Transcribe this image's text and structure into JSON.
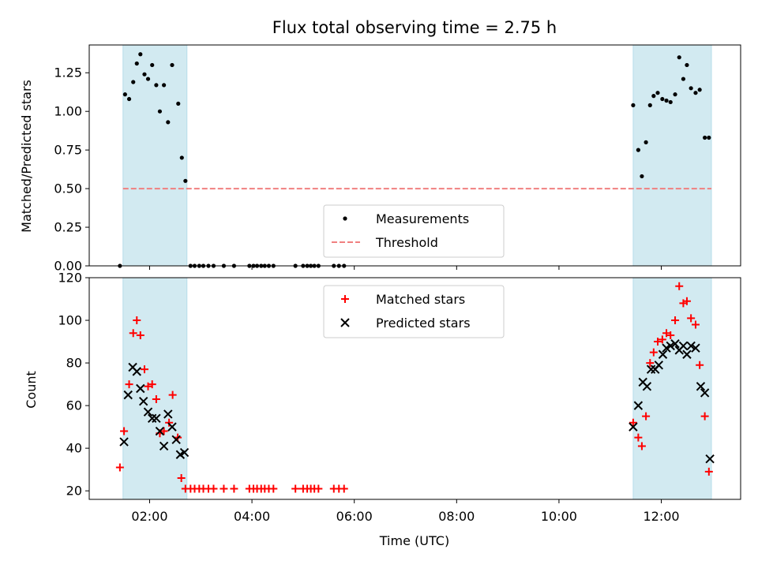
{
  "chart_data": [
    {
      "type": "scatter",
      "title": "Flux total observing time = 2.75 h",
      "xlabel": "",
      "ylabel": "Matched/Predicted stars",
      "xlim": [
        0.82,
        13.55
      ],
      "ylim": [
        0,
        1.43
      ],
      "yticks": [
        0.0,
        0.25,
        0.5,
        0.75,
        1.0,
        1.25
      ],
      "ytick_labels": [
        "0.00",
        "0.25",
        "0.50",
        "0.75",
        "1.00",
        "1.25"
      ],
      "xticks": [
        2,
        4,
        6,
        8,
        10,
        12
      ],
      "shaded_intervals": [
        [
          1.48,
          2.73
        ],
        [
          11.45,
          12.98
        ]
      ],
      "threshold": 0.5,
      "threshold_color": "#f08080",
      "shade_color": "#add8e6",
      "legend_position": "lower center",
      "legend": [
        "Measurements",
        "Threshold"
      ],
      "series": [
        {
          "name": "Measurements",
          "color": "#000000",
          "marker": "dot",
          "points": [
            [
              1.42,
              0.0
            ],
            [
              1.52,
              1.11
            ],
            [
              1.6,
              1.08
            ],
            [
              1.68,
              1.19
            ],
            [
              1.75,
              1.31
            ],
            [
              1.82,
              1.37
            ],
            [
              1.9,
              1.24
            ],
            [
              1.97,
              1.21
            ],
            [
              2.05,
              1.3
            ],
            [
              2.13,
              1.17
            ],
            [
              2.2,
              1.0
            ],
            [
              2.28,
              1.17
            ],
            [
              2.36,
              0.93
            ],
            [
              2.44,
              1.3
            ],
            [
              2.56,
              1.05
            ],
            [
              2.63,
              0.7
            ],
            [
              2.7,
              0.55
            ],
            [
              2.8,
              0.0
            ],
            [
              2.88,
              0.0
            ],
            [
              2.97,
              0.0
            ],
            [
              3.05,
              0.0
            ],
            [
              3.15,
              0.0
            ],
            [
              3.25,
              0.0
            ],
            [
              3.45,
              0.0
            ],
            [
              3.65,
              0.0
            ],
            [
              3.95,
              0.0
            ],
            [
              4.03,
              0.0
            ],
            [
              4.1,
              0.0
            ],
            [
              4.18,
              0.0
            ],
            [
              4.25,
              0.0
            ],
            [
              4.33,
              0.0
            ],
            [
              4.42,
              0.0
            ],
            [
              4.85,
              0.0
            ],
            [
              5.0,
              0.0
            ],
            [
              5.08,
              0.0
            ],
            [
              5.15,
              0.0
            ],
            [
              5.22,
              0.0
            ],
            [
              5.3,
              0.0
            ],
            [
              5.6,
              0.0
            ],
            [
              5.7,
              0.0
            ],
            [
              5.8,
              0.0
            ],
            [
              11.45,
              1.04
            ],
            [
              11.55,
              0.75
            ],
            [
              11.62,
              0.58
            ],
            [
              11.7,
              0.8
            ],
            [
              11.78,
              1.04
            ],
            [
              11.85,
              1.1
            ],
            [
              11.93,
              1.12
            ],
            [
              12.02,
              1.08
            ],
            [
              12.1,
              1.07
            ],
            [
              12.18,
              1.06
            ],
            [
              12.27,
              1.11
            ],
            [
              12.35,
              1.35
            ],
            [
              12.43,
              1.21
            ],
            [
              12.5,
              1.3
            ],
            [
              12.58,
              1.15
            ],
            [
              12.67,
              1.12
            ],
            [
              12.75,
              1.14
            ],
            [
              12.85,
              0.83
            ],
            [
              12.93,
              0.83
            ]
          ]
        }
      ]
    },
    {
      "type": "scatter",
      "title": "",
      "xlabel": "Time (UTC)",
      "ylabel": "Count",
      "xlim": [
        0.82,
        13.55
      ],
      "ylim": [
        16,
        120
      ],
      "yticks": [
        20,
        40,
        60,
        80,
        100,
        120
      ],
      "ytick_labels": [
        "20",
        "40",
        "60",
        "80",
        "100",
        "120"
      ],
      "xticks": [
        2,
        4,
        6,
        8,
        10,
        12
      ],
      "xtick_labels": [
        "02:00",
        "04:00",
        "06:00",
        "08:00",
        "10:00",
        "12:00"
      ],
      "shaded_intervals": [
        [
          1.48,
          2.73
        ],
        [
          11.45,
          12.98
        ]
      ],
      "shade_color": "#add8e6",
      "legend_position": "upper center",
      "legend": [
        "Matched stars",
        "Predicted stars"
      ],
      "series": [
        {
          "name": "Matched stars",
          "color": "#ff0000",
          "marker": "plus",
          "points": [
            [
              1.42,
              31
            ],
            [
              1.5,
              48
            ],
            [
              1.6,
              70
            ],
            [
              1.68,
              94
            ],
            [
              1.75,
              100
            ],
            [
              1.82,
              93
            ],
            [
              1.9,
              77
            ],
            [
              1.97,
              69
            ],
            [
              2.05,
              70
            ],
            [
              2.13,
              63
            ],
            [
              2.2,
              47
            ],
            [
              2.28,
              48
            ],
            [
              2.38,
              52
            ],
            [
              2.45,
              65
            ],
            [
              2.55,
              45
            ],
            [
              2.62,
              26
            ],
            [
              2.7,
              21
            ],
            [
              2.8,
              21
            ],
            [
              2.88,
              21
            ],
            [
              2.97,
              21
            ],
            [
              3.05,
              21
            ],
            [
              3.15,
              21
            ],
            [
              3.25,
              21
            ],
            [
              3.45,
              21
            ],
            [
              3.65,
              21
            ],
            [
              3.95,
              21
            ],
            [
              4.03,
              21
            ],
            [
              4.1,
              21
            ],
            [
              4.18,
              21
            ],
            [
              4.25,
              21
            ],
            [
              4.33,
              21
            ],
            [
              4.42,
              21
            ],
            [
              4.85,
              21
            ],
            [
              5.0,
              21
            ],
            [
              5.08,
              21
            ],
            [
              5.15,
              21
            ],
            [
              5.22,
              21
            ],
            [
              5.3,
              21
            ],
            [
              5.6,
              21
            ],
            [
              5.7,
              21
            ],
            [
              5.8,
              21
            ],
            [
              11.45,
              52
            ],
            [
              11.55,
              45
            ],
            [
              11.62,
              41
            ],
            [
              11.7,
              55
            ],
            [
              11.78,
              80
            ],
            [
              11.85,
              85
            ],
            [
              11.93,
              90
            ],
            [
              12.02,
              91
            ],
            [
              12.1,
              94
            ],
            [
              12.18,
              93
            ],
            [
              12.27,
              100
            ],
            [
              12.35,
              116
            ],
            [
              12.43,
              108
            ],
            [
              12.5,
              109
            ],
            [
              12.58,
              101
            ],
            [
              12.67,
              98
            ],
            [
              12.75,
              79
            ],
            [
              12.85,
              55
            ],
            [
              12.93,
              29
            ]
          ]
        },
        {
          "name": "Predicted stars",
          "color": "#000000",
          "marker": "x",
          "points": [
            [
              1.5,
              43
            ],
            [
              1.58,
              65
            ],
            [
              1.67,
              78
            ],
            [
              1.75,
              76
            ],
            [
              1.82,
              68
            ],
            [
              1.88,
              62
            ],
            [
              1.97,
              57
            ],
            [
              2.05,
              54
            ],
            [
              2.13,
              54
            ],
            [
              2.2,
              48
            ],
            [
              2.28,
              41
            ],
            [
              2.36,
              56
            ],
            [
              2.44,
              50
            ],
            [
              2.52,
              44
            ],
            [
              2.6,
              37
            ],
            [
              2.68,
              38
            ],
            [
              11.45,
              50
            ],
            [
              11.55,
              60
            ],
            [
              11.64,
              71
            ],
            [
              11.72,
              69
            ],
            [
              11.8,
              77
            ],
            [
              11.88,
              77
            ],
            [
              11.95,
              79
            ],
            [
              12.03,
              84
            ],
            [
              12.1,
              87
            ],
            [
              12.18,
              88
            ],
            [
              12.27,
              89
            ],
            [
              12.35,
              86
            ],
            [
              12.43,
              88
            ],
            [
              12.5,
              84
            ],
            [
              12.58,
              88
            ],
            [
              12.67,
              87
            ],
            [
              12.77,
              69
            ],
            [
              12.85,
              66
            ],
            [
              12.95,
              35
            ]
          ]
        }
      ]
    }
  ]
}
